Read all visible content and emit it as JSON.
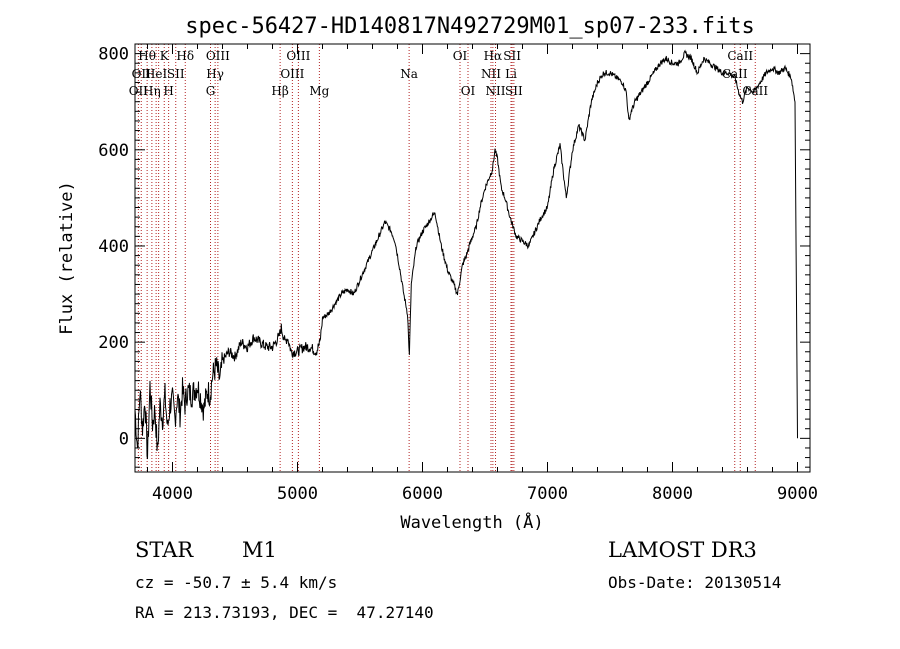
{
  "chart_data": {
    "type": "line",
    "title": "spec-56427-HD140817N492729M01_sp07-233.fits",
    "xlabel": "Wavelength (Å)",
    "ylabel": "Flux (relative)",
    "xlim": [
      3700,
      9100
    ],
    "ylim": [
      -70,
      820
    ],
    "xticks": [
      4000,
      5000,
      6000,
      7000,
      8000,
      9000
    ],
    "yticks": [
      0,
      200,
      400,
      600,
      800
    ],
    "series": [
      {
        "name": "spectrum",
        "x": [
          3700,
          3720,
          3740,
          3760,
          3780,
          3800,
          3820,
          3840,
          3860,
          3880,
          3900,
          3920,
          3940,
          3960,
          3980,
          4000,
          4020,
          4040,
          4060,
          4080,
          4100,
          4120,
          4150,
          4200,
          4250,
          4280,
          4300,
          4320,
          4350,
          4380,
          4400,
          4450,
          4500,
          4550,
          4600,
          4650,
          4700,
          4750,
          4800,
          4850,
          4870,
          4900,
          4920,
          4950,
          5000,
          5050,
          5100,
          5150,
          5180,
          5200,
          5250,
          5300,
          5350,
          5400,
          5450,
          5500,
          5550,
          5600,
          5650,
          5700,
          5750,
          5780,
          5800,
          5820,
          5850,
          5880,
          5895,
          5910,
          5930,
          5950,
          6000,
          6050,
          6100,
          6150,
          6200,
          6250,
          6280,
          6320,
          6350,
          6400,
          6430,
          6460,
          6500,
          6530,
          6560,
          6580,
          6600,
          6630,
          6660,
          6700,
          6750,
          6800,
          6850,
          6900,
          6950,
          7000,
          7050,
          7100,
          7150,
          7200,
          7250,
          7300,
          7350,
          7400,
          7450,
          7500,
          7550,
          7600,
          7630,
          7650,
          7670,
          7700,
          7750,
          7800,
          7850,
          7900,
          7950,
          8000,
          8050,
          8100,
          8150,
          8200,
          8250,
          8300,
          8350,
          8400,
          8450,
          8500,
          8530,
          8560,
          8600,
          8650,
          8700,
          8750,
          8800,
          8850,
          8900,
          8950,
          8980,
          9000
        ],
        "y": [
          60,
          -20,
          100,
          20,
          80,
          -40,
          110,
          30,
          60,
          -30,
          70,
          40,
          90,
          20,
          70,
          80,
          40,
          90,
          50,
          100,
          70,
          100,
          90,
          110,
          60,
          100,
          90,
          130,
          150,
          120,
          160,
          180,
          170,
          200,
          190,
          210,
          200,
          190,
          190,
          210,
          230,
          200,
          210,
          180,
          180,
          190,
          190,
          180,
          200,
          250,
          260,
          280,
          300,
          310,
          300,
          330,
          360,
          390,
          420,
          450,
          430,
          410,
          380,
          350,
          300,
          260,
          170,
          320,
          360,
          400,
          430,
          450,
          470,
          400,
          350,
          320,
          300,
          360,
          380,
          420,
          440,
          480,
          520,
          540,
          560,
          600,
          580,
          520,
          500,
          460,
          420,
          410,
          400,
          430,
          460,
          480,
          560,
          610,
          500,
          600,
          650,
          620,
          700,
          740,
          760,
          760,
          750,
          740,
          720,
          660,
          680,
          700,
          720,
          740,
          760,
          780,
          790,
          780,
          780,
          800,
          790,
          760,
          790,
          780,
          770,
          760,
          760,
          750,
          720,
          700,
          730,
          720,
          740,
          760,
          770,
          760,
          770,
          750,
          700,
          0
        ]
      }
    ],
    "line_markers": [
      {
        "wavelength": 3727,
        "label": "OII",
        "row": 2
      },
      {
        "wavelength": 3750,
        "label": "OII",
        "row": 1
      },
      {
        "wavelength": 3797,
        "label": "Hθ",
        "row": 0
      },
      {
        "wavelength": 3835,
        "label": "Hη",
        "row": 2
      },
      {
        "wavelength": 3869,
        "label": "HeI",
        "row": 1
      },
      {
        "wavelength": 3889,
        "label": "",
        "row": 0
      },
      {
        "wavelength": 3934,
        "label": "K",
        "row": 0
      },
      {
        "wavelength": 3969,
        "label": "H",
        "row": 2
      },
      {
        "wavelength": 4026,
        "label": "SII",
        "row": 1
      },
      {
        "wavelength": 4102,
        "label": "Hδ",
        "row": 0
      },
      {
        "wavelength": 4304,
        "label": "G",
        "row": 2
      },
      {
        "wavelength": 4341,
        "label": "Hγ",
        "row": 1
      },
      {
        "wavelength": 4363,
        "label": "OIII",
        "row": 0
      },
      {
        "wavelength": 4861,
        "label": "Hβ",
        "row": 2
      },
      {
        "wavelength": 4959,
        "label": "OIII",
        "row": 1
      },
      {
        "wavelength": 5007,
        "label": "OIII",
        "row": 0
      },
      {
        "wavelength": 5175,
        "label": "Mg",
        "row": 2
      },
      {
        "wavelength": 5893,
        "label": "Na",
        "row": 1
      },
      {
        "wavelength": 6300,
        "label": "OI",
        "row": 0
      },
      {
        "wavelength": 6364,
        "label": "OI",
        "row": 2
      },
      {
        "wavelength": 6548,
        "label": "NII",
        "row": 1
      },
      {
        "wavelength": 6563,
        "label": "Hα",
        "row": 0
      },
      {
        "wavelength": 6584,
        "label": "NII",
        "row": 2
      },
      {
        "wavelength": 6708,
        "label": "Li",
        "row": 1
      },
      {
        "wavelength": 6717,
        "label": "SII",
        "row": 0
      },
      {
        "wavelength": 6731,
        "label": "SII",
        "row": 2
      },
      {
        "wavelength": 8498,
        "label": "CaII",
        "row": 1
      },
      {
        "wavelength": 8542,
        "label": "CaII",
        "row": 0
      },
      {
        "wavelength": 8662,
        "label": "CaII",
        "row": 2
      }
    ]
  },
  "info": {
    "object_class": "STAR",
    "subclass": "M1",
    "survey": "LAMOST DR3",
    "cz": "cz = -50.7 ± 5.4 km/s",
    "obs_date": "Obs-Date: 20130514",
    "coords": "RA = 213.73193, DEC =  47.27140"
  },
  "colors": {
    "marker": "#b22222",
    "spectrum": "#000000"
  }
}
